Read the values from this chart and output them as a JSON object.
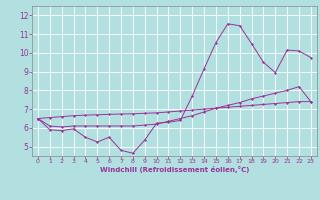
{
  "bg_color": "#b2e0e0",
  "line_color": "#993399",
  "grid_color": "#ffffff",
  "xlabel": "Windchill (Refroidissement éolien,°C)",
  "xlim": [
    -0.5,
    23.5
  ],
  "ylim": [
    4.5,
    12.5
  ],
  "xticks": [
    0,
    1,
    2,
    3,
    4,
    5,
    6,
    7,
    8,
    9,
    10,
    11,
    12,
    13,
    14,
    15,
    16,
    17,
    18,
    19,
    20,
    21,
    22,
    23
  ],
  "yticks": [
    5,
    6,
    7,
    8,
    9,
    10,
    11,
    12
  ],
  "line1_x": [
    0,
    1,
    2,
    3,
    4,
    5,
    6,
    7,
    8,
    9,
    10,
    11,
    12,
    13,
    14,
    15,
    16,
    17,
    18,
    19,
    20,
    21,
    22,
    23
  ],
  "line1_y": [
    6.5,
    5.9,
    5.85,
    5.95,
    5.5,
    5.25,
    5.5,
    4.8,
    4.65,
    5.35,
    6.25,
    6.3,
    6.4,
    7.7,
    9.15,
    10.55,
    11.55,
    11.45,
    10.5,
    9.5,
    8.95,
    10.15,
    10.1,
    9.75
  ],
  "line2_x": [
    0,
    1,
    2,
    3,
    4,
    5,
    6,
    7,
    8,
    9,
    10,
    11,
    12,
    13,
    14,
    15,
    16,
    17,
    18,
    19,
    20,
    21,
    22,
    23
  ],
  "line2_y": [
    6.5,
    6.55,
    6.6,
    6.65,
    6.68,
    6.7,
    6.72,
    6.74,
    6.75,
    6.78,
    6.8,
    6.85,
    6.9,
    6.95,
    7.0,
    7.05,
    7.1,
    7.15,
    7.2,
    7.25,
    7.3,
    7.35,
    7.4,
    7.4
  ],
  "line3_x": [
    0,
    1,
    2,
    3,
    4,
    5,
    6,
    7,
    8,
    9,
    10,
    11,
    12,
    13,
    14,
    15,
    16,
    17,
    18,
    19,
    20,
    21,
    22,
    23
  ],
  "line3_y": [
    6.5,
    6.1,
    6.05,
    6.1,
    6.1,
    6.1,
    6.1,
    6.1,
    6.1,
    6.15,
    6.2,
    6.35,
    6.5,
    6.65,
    6.85,
    7.05,
    7.2,
    7.35,
    7.55,
    7.7,
    7.85,
    8.0,
    8.2,
    7.4
  ]
}
